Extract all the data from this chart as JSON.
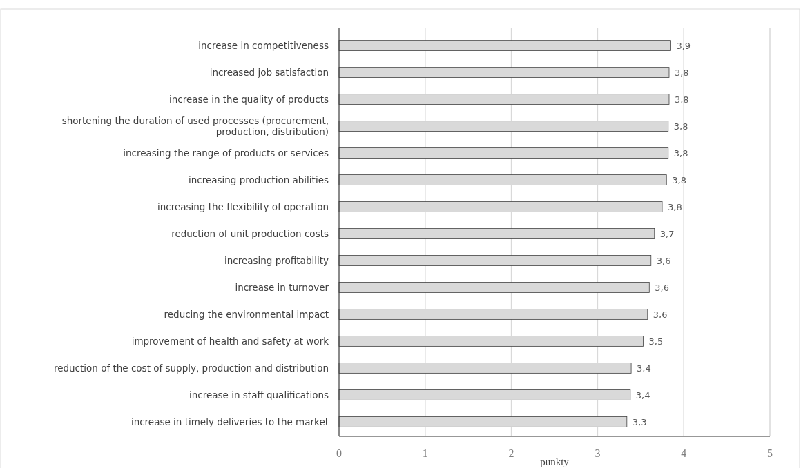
{
  "chart_data": {
    "type": "bar",
    "orientation": "horizontal",
    "xlabel": "punkty",
    "categories": [
      "increase in competitiveness",
      "increased job satisfaction",
      "increase in the quality of products",
      "shortening the duration of used processes (procurement, production, distribution)",
      "increasing the range of products or services",
      "increasing production abilities",
      "increasing the flexibility of operation",
      "reduction of unit production costs",
      "increasing profitability",
      "increase in turnover",
      "reducing the environmental impact",
      "improvement of health and safety at work",
      "reduction of the cost of supply, production and distribution",
      "increase in staff qualifications",
      "increase in timely deliveries to the market"
    ],
    "values": [
      3.85,
      3.83,
      3.83,
      3.82,
      3.82,
      3.8,
      3.75,
      3.66,
      3.62,
      3.6,
      3.58,
      3.53,
      3.39,
      3.38,
      3.34
    ],
    "value_labels": [
      "3,9",
      "3,8",
      "3,8",
      "3,8",
      "3,8",
      "3,8",
      "3,8",
      "3,7",
      "3,6",
      "3,6",
      "3,6",
      "3,5",
      "3,4",
      "3,4",
      "3,3"
    ],
    "color": "#d9d9d9",
    "xlim": [
      0,
      5
    ],
    "xticks": [
      0,
      1,
      2,
      3,
      4,
      5
    ],
    "grid": "x"
  }
}
